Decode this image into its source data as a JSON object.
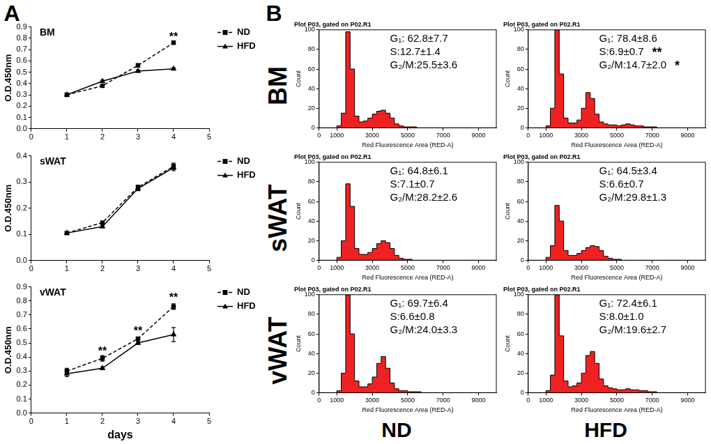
{
  "panel_labels": [
    "A",
    "B"
  ],
  "row_labels": [
    "BM",
    "sWAT",
    "vWAT"
  ],
  "column_labels": [
    "ND",
    "HFD"
  ],
  "chart_data": [
    {
      "type": "line",
      "title": "BM",
      "y_label": "O.D.450nm",
      "x": [
        1,
        2,
        3,
        4
      ],
      "xlim": [
        0,
        5
      ],
      "xticks": [
        0,
        1,
        2,
        3,
        4,
        5
      ],
      "ylim": [
        0,
        0.9
      ],
      "yticks": [
        {
          "value": 0,
          "label": "0.0"
        },
        0.1,
        0.2,
        0.3,
        0.4,
        0.5,
        0.6,
        0.7,
        0.8,
        0.9
      ],
      "grid": false,
      "legend": "right",
      "series": [
        {
          "name": "ND",
          "color": "#000000",
          "marker": "square",
          "line_style": "dashed",
          "values": [
            0.3,
            0.38,
            0.56,
            0.76
          ],
          "error": [
            0.01,
            0.01,
            0.01,
            0.01
          ]
        },
        {
          "name": "HFD",
          "color": "#000000",
          "marker": "triangle",
          "line_style": "solid",
          "values": [
            0.3,
            0.42,
            0.51,
            0.53
          ],
          "error": [
            0.01,
            0.01,
            0.01,
            0.01
          ]
        }
      ],
      "annotations": [
        {
          "x": 4,
          "y": 0.78,
          "text": "**"
        }
      ]
    },
    {
      "type": "line",
      "title": "sWAT",
      "y_label": "O.D.450nm",
      "x": [
        1,
        2,
        3,
        4
      ],
      "xlim": [
        0,
        5
      ],
      "xticks": [
        0,
        1,
        2,
        3,
        4,
        5
      ],
      "ylim": [
        0,
        0.4
      ],
      "yticks": [
        {
          "value": 0,
          "label": "0.0"
        },
        0.1,
        0.2,
        0.3,
        0.4
      ],
      "grid": false,
      "legend": "right",
      "series": [
        {
          "name": "ND",
          "color": "#000000",
          "marker": "square",
          "line_style": "dashed",
          "values": [
            0.105,
            0.145,
            0.28,
            0.36
          ],
          "error": [
            0.005,
            0.005,
            0.008,
            0.012
          ]
        },
        {
          "name": "HFD",
          "color": "#000000",
          "marker": "triangle",
          "line_style": "solid",
          "values": [
            0.105,
            0.13,
            0.275,
            0.355
          ],
          "error": [
            0.005,
            0.005,
            0.008,
            0.012
          ]
        }
      ]
    },
    {
      "type": "line",
      "title": "vWAT",
      "y_label": "O.D.450nm",
      "x_label": "days",
      "x": [
        1,
        2,
        3,
        4
      ],
      "xlim": [
        0,
        5
      ],
      "xticks": [
        0,
        1,
        2,
        3,
        4,
        5
      ],
      "ylim": [
        0,
        0.9
      ],
      "yticks": [
        {
          "value": 0,
          "label": "0.0"
        },
        0.1,
        0.2,
        0.3,
        0.4,
        0.5,
        0.6,
        0.7,
        0.8,
        0.9
      ],
      "grid": false,
      "legend": "right",
      "series": [
        {
          "name": "ND",
          "color": "#000000",
          "marker": "square",
          "line_style": "dashed",
          "values": [
            0.3,
            0.39,
            0.53,
            0.76
          ],
          "error": [
            0.02,
            0.02,
            0.01,
            0.02
          ]
        },
        {
          "name": "HFD",
          "color": "#000000",
          "marker": "triangle",
          "line_style": "solid",
          "values": [
            0.28,
            0.32,
            0.5,
            0.56
          ],
          "error": [
            0.02,
            0.01,
            0.01,
            0.05
          ]
        }
      ],
      "annotations": [
        {
          "x": 2,
          "y": 0.42,
          "text": "**"
        },
        {
          "x": 3,
          "y": 0.56,
          "text": "**"
        },
        {
          "x": 4,
          "y": 0.8,
          "text": "**"
        }
      ]
    },
    {
      "type": "histogram",
      "title": "Plot P03, gated on P02.R1",
      "x_label": "Red Fluorescence Area (RED-A)",
      "y_label": "Count",
      "color": "#ee2222",
      "bins": [
        0,
        250,
        500,
        750,
        1000,
        1250,
        1500,
        1750,
        2000,
        2250,
        2500,
        2750,
        3000,
        3250,
        3500,
        3750,
        4000,
        4250,
        4500,
        4750,
        5000,
        5250,
        5500,
        5750,
        6000,
        6250,
        6500,
        6750,
        7000,
        7250,
        7500,
        7750,
        8000,
        8250,
        8500,
        8750,
        9000,
        9250,
        9500,
        9750,
        10000
      ],
      "counts": [
        0,
        0,
        0,
        0,
        0,
        2,
        15,
        98,
        60,
        12,
        6,
        7,
        10,
        14,
        17,
        18,
        15,
        10,
        4,
        2,
        1,
        1,
        1,
        0,
        0,
        0,
        0,
        0,
        0,
        0,
        0,
        0,
        0,
        0,
        0,
        0,
        0,
        0,
        0,
        0
      ],
      "xlim": [
        0,
        10000
      ],
      "xticks": [
        0,
        1000,
        3000,
        5000,
        7000,
        9000
      ],
      "ylim": [
        0,
        100
      ],
      "yticks": [
        0,
        20,
        40,
        60,
        80,
        100
      ],
      "grid": false,
      "annotations": [
        "G₁: 62.8±7.7",
        "S:12.7±1.4",
        "G₂/M:25.5±3.6"
      ]
    },
    {
      "type": "histogram",
      "title": "Plot P03, gated on P02.R1",
      "x_label": "Red Fluorescence Area (RED-A)",
      "y_label": "Count",
      "color": "#ee2222",
      "bins": [
        0,
        250,
        500,
        750,
        1000,
        1250,
        1500,
        1750,
        2000,
        2250,
        2500,
        2750,
        3000,
        3250,
        3500,
        3750,
        4000,
        4250,
        4500,
        4750,
        5000,
        5250,
        5500,
        5750,
        6000,
        6250,
        6500,
        6750,
        7000,
        7250,
        7500,
        7750,
        8000,
        8250,
        8500,
        8750,
        9000,
        9250,
        9500,
        9750,
        10000
      ],
      "counts": [
        0,
        0,
        0,
        0,
        0,
        2,
        20,
        100,
        55,
        10,
        5,
        5,
        8,
        20,
        36,
        30,
        14,
        6,
        4,
        3,
        3,
        2,
        3,
        4,
        3,
        2,
        2,
        1,
        1,
        1,
        0,
        0,
        0,
        0,
        0,
        0,
        0,
        0,
        0,
        0
      ],
      "xlim": [
        0,
        10000
      ],
      "xticks": [
        0,
        1000,
        3000,
        5000,
        7000,
        9000
      ],
      "ylim": [
        0,
        100
      ],
      "yticks": [
        0,
        20,
        40,
        60,
        80,
        100
      ],
      "grid": false,
      "annotations": [
        "G₁: 78.4±8.6",
        "S:6.9±0.7",
        "G₂/M:14.7±2.0"
      ],
      "significance": [
        null,
        "**",
        "*"
      ]
    },
    {
      "type": "histogram",
      "title": "Plot P03, gated on P02.R1",
      "x_label": "Red Fluorescence Area (RED-A)",
      "y_label": "Count",
      "color": "#ee2222",
      "bins": [
        0,
        250,
        500,
        750,
        1000,
        1250,
        1500,
        1750,
        2000,
        2250,
        2500,
        2750,
        3000,
        3250,
        3500,
        3750,
        4000,
        4250,
        4500,
        4750,
        5000,
        5250,
        5500,
        5750,
        6000,
        6250,
        6500,
        6750,
        7000,
        7250,
        7500,
        7750,
        8000,
        8250,
        8500,
        8750,
        9000,
        9250,
        9500,
        9750,
        10000
      ],
      "counts": [
        0,
        0,
        0,
        0,
        0,
        3,
        20,
        78,
        55,
        12,
        6,
        6,
        8,
        12,
        17,
        20,
        18,
        12,
        5,
        2,
        1,
        1,
        0,
        0,
        0,
        0,
        0,
        0,
        0,
        0,
        0,
        0,
        0,
        0,
        0,
        0,
        0,
        0,
        0,
        0
      ],
      "xlim": [
        0,
        10000
      ],
      "xticks": [
        0,
        1000,
        3000,
        5000,
        7000,
        9000
      ],
      "ylim": [
        0,
        100
      ],
      "yticks": [
        0,
        20,
        40,
        60,
        80,
        100
      ],
      "grid": false,
      "annotations": [
        "G₁: 64.8±6.1",
        "S:7.1±0.7",
        "G₂/M:28.2±2.6"
      ]
    },
    {
      "type": "histogram",
      "title": "Plot P03, gated on P02.R1",
      "x_label": "Red Fluorescence Area (RED-A)",
      "y_label": "Count",
      "color": "#ee2222",
      "bins": [
        0,
        250,
        500,
        750,
        1000,
        1250,
        1500,
        1750,
        2000,
        2250,
        2500,
        2750,
        3000,
        3250,
        3500,
        3750,
        4000,
        4250,
        4500,
        4750,
        5000,
        5250,
        5500,
        5750,
        6000,
        6250,
        6500,
        6750,
        7000,
        7250,
        7500,
        7750,
        8000,
        8250,
        8500,
        8750,
        9000,
        9250,
        9500,
        9750,
        10000
      ],
      "counts": [
        0,
        0,
        0,
        0,
        0,
        3,
        15,
        56,
        40,
        10,
        5,
        5,
        7,
        10,
        13,
        15,
        14,
        10,
        4,
        2,
        1,
        1,
        0,
        0,
        0,
        0,
        0,
        0,
        0,
        0,
        0,
        0,
        0,
        0,
        0,
        0,
        0,
        0,
        0,
        0
      ],
      "xlim": [
        0,
        10000
      ],
      "xticks": [
        0,
        1000,
        3000,
        5000,
        7000,
        9000
      ],
      "ylim": [
        0,
        100
      ],
      "yticks": [
        0,
        20,
        40,
        60,
        80,
        100
      ],
      "grid": false,
      "annotations": [
        "G₁: 64.5±3.4",
        "S:6.6±0.7",
        "G₂/M:29.8±1.3"
      ]
    },
    {
      "type": "histogram",
      "title": "Plot P03, gated on P02.R1",
      "x_label": "Red Fluorescence Area (RED-A)",
      "y_label": "Count",
      "color": "#ee2222",
      "bins": [
        0,
        250,
        500,
        750,
        1000,
        1250,
        1500,
        1750,
        2000,
        2250,
        2500,
        2750,
        3000,
        3250,
        3500,
        3750,
        4000,
        4250,
        4500,
        4750,
        5000,
        5250,
        5500,
        5750,
        6000,
        6250,
        6500,
        6750,
        7000,
        7250,
        7500,
        7750,
        8000,
        8250,
        8500,
        8750,
        9000,
        9250,
        9500,
        9750,
        10000
      ],
      "counts": [
        0,
        0,
        0,
        0,
        0,
        2,
        20,
        100,
        60,
        12,
        6,
        6,
        9,
        16,
        30,
        37,
        25,
        10,
        4,
        2,
        2,
        1,
        1,
        1,
        0,
        0,
        0,
        0,
        0,
        0,
        0,
        0,
        0,
        0,
        0,
        0,
        0,
        0,
        0,
        0
      ],
      "xlim": [
        0,
        10000
      ],
      "xticks": [
        0,
        1000,
        3000,
        5000,
        7000,
        9000
      ],
      "ylim": [
        0,
        100
      ],
      "yticks": [
        0,
        20,
        40,
        60,
        80,
        100
      ],
      "grid": false,
      "annotations": [
        "G₁: 69.7±6.4",
        "S:6.6±0.8",
        "G₂/M:24.0±3.3"
      ]
    },
    {
      "type": "histogram",
      "title": "Plot P03, gated on P02.R1",
      "x_label": "Red Fluorescence Area (RED-A)",
      "y_label": "Count",
      "color": "#ee2222",
      "bins": [
        0,
        250,
        500,
        750,
        1000,
        1250,
        1500,
        1750,
        2000,
        2250,
        2500,
        2750,
        3000,
        3250,
        3500,
        3750,
        4000,
        4250,
        4500,
        4750,
        5000,
        5250,
        5500,
        5750,
        6000,
        6250,
        6500,
        6750,
        7000,
        7250,
        7500,
        7750,
        8000,
        8250,
        8500,
        8750,
        9000,
        9250,
        9500,
        9750,
        10000
      ],
      "counts": [
        0,
        0,
        0,
        0,
        0,
        2,
        18,
        100,
        58,
        12,
        6,
        7,
        10,
        20,
        38,
        42,
        30,
        14,
        7,
        5,
        4,
        3,
        3,
        4,
        3,
        3,
        2,
        2,
        1,
        1,
        0,
        0,
        0,
        0,
        0,
        0,
        0,
        0,
        0,
        0
      ],
      "xlim": [
        0,
        10000
      ],
      "xticks": [
        0,
        1000,
        3000,
        5000,
        7000,
        9000
      ],
      "ylim": [
        0,
        100
      ],
      "yticks": [
        0,
        20,
        40,
        60,
        80,
        100
      ],
      "grid": false,
      "annotations": [
        "G₁: 72.4±6.1",
        "S:8.0±1.0",
        "G₂/M:19.6±2.7"
      ]
    }
  ]
}
